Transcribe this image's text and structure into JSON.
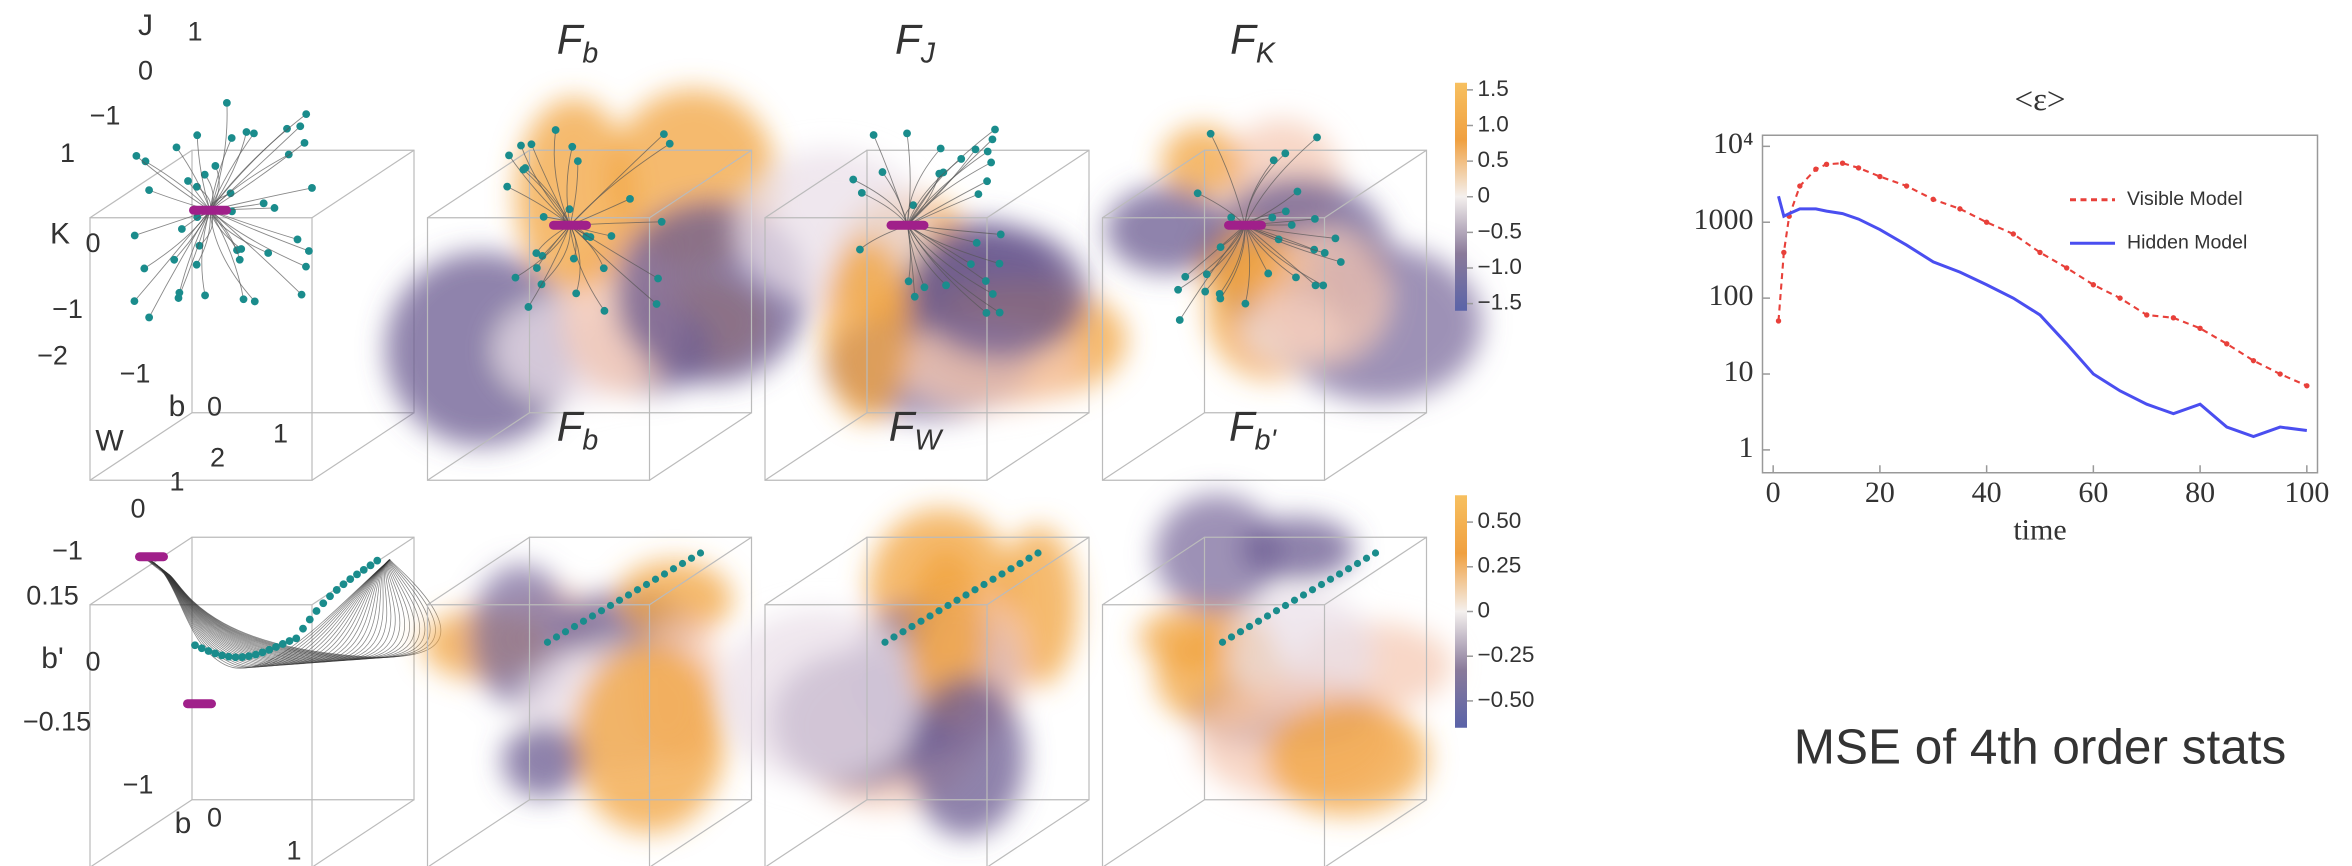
{
  "chart_data": [
    {
      "type": "scatter3d",
      "axes": [
        {
          "label": "J",
          "ticks": [
            1,
            0,
            {
              "value": -1,
              "label": "−1"
            }
          ]
        },
        {
          "label": "K",
          "ticks": [
            1,
            0,
            {
              "value": -1,
              "label": "−1"
            },
            {
              "value": -2,
              "label": "−2"
            }
          ]
        },
        {
          "label": "b",
          "ticks": [
            {
              "value": -1,
              "label": "−1"
            },
            0,
            1
          ]
        }
      ]
    },
    {
      "type": "volume",
      "title": "F",
      "title_subscript": "b"
    },
    {
      "type": "volume",
      "title": "F",
      "title_subscript": "J"
    },
    {
      "type": "volume",
      "title": "F",
      "title_subscript": "K"
    },
    {
      "type": "colorbar",
      "ylim": [
        -1.6,
        1.6
      ],
      "colors": [
        "#5a63a8",
        "#8a7a9a",
        "#f4f0ee",
        "#f0a040",
        "#f7c060"
      ],
      "yticks": [
        1.5,
        {
          "value": 1,
          "label": "1.0"
        },
        0.5,
        0,
        {
          "value": -0.5,
          "label": "−0.5"
        },
        {
          "value": -1,
          "label": "−1.0"
        },
        {
          "value": -1.5,
          "label": "−1.5"
        }
      ]
    },
    {
      "type": "scatter3d",
      "axes": [
        {
          "label": "W",
          "ticks": [
            2,
            1,
            0,
            {
              "value": -1,
              "label": "−1"
            }
          ]
        },
        {
          "label": "b'",
          "ticks": [
            0.15,
            0,
            {
              "value": -0.15,
              "label": "−0.15"
            }
          ]
        },
        {
          "label": "b",
          "ticks": [
            {
              "value": -1,
              "label": "−1"
            },
            0,
            1
          ]
        }
      ]
    },
    {
      "type": "volume",
      "title": "F",
      "title_subscript": "b"
    },
    {
      "type": "volume",
      "title": "F",
      "title_subscript": "W"
    },
    {
      "type": "volume",
      "title": "F",
      "title_subscript": "b'"
    },
    {
      "type": "colorbar",
      "ylim": [
        -0.65,
        0.65
      ],
      "colors": [
        "#5a63a8",
        "#8a7a9a",
        "#f4f0ee",
        "#f0a040",
        "#f7c060"
      ],
      "yticks": [
        {
          "value": 0.5,
          "label": "0.50"
        },
        0.25,
        0,
        {
          "value": -0.25,
          "label": "−0.25"
        },
        {
          "value": -0.5,
          "label": "−0.50"
        }
      ]
    },
    {
      "type": "line",
      "title": "<ε>",
      "xlabel": "time",
      "log_y": true,
      "legend": "upper right",
      "xlim": [
        -2,
        102
      ],
      "ylim": [
        0.5,
        14000
      ],
      "xticks": [
        0,
        20,
        40,
        60,
        80,
        100
      ],
      "yticks": [
        {
          "value": 10000,
          "label": "10⁴"
        },
        1000,
        100,
        10,
        1
      ],
      "x": [
        1,
        2,
        3,
        5,
        8,
        10,
        13,
        16,
        20,
        25,
        30,
        35,
        40,
        45,
        50,
        55,
        60,
        65,
        70,
        75,
        80,
        85,
        90,
        95,
        100
      ],
      "series": [
        {
          "name": "Visible Model",
          "color": "#e8403a",
          "values": [
            50,
            400,
            1200,
            3000,
            5000,
            5800,
            6000,
            5200,
            4000,
            3000,
            2000,
            1500,
            1000,
            700,
            400,
            250,
            150,
            100,
            60,
            55,
            40,
            25,
            15,
            10,
            7
          ]
        },
        {
          "name": "Hidden Model",
          "color": "#4a4ef0",
          "values": [
            2200,
            1200,
            1300,
            1500,
            1500,
            1400,
            1300,
            1100,
            800,
            500,
            300,
            220,
            150,
            100,
            60,
            25,
            10,
            6,
            4,
            3,
            4,
            2,
            1.5,
            2,
            1.8
          ]
        }
      ]
    },
    {
      "type": "annotation",
      "text": "MSE of 4th order stats"
    }
  ]
}
